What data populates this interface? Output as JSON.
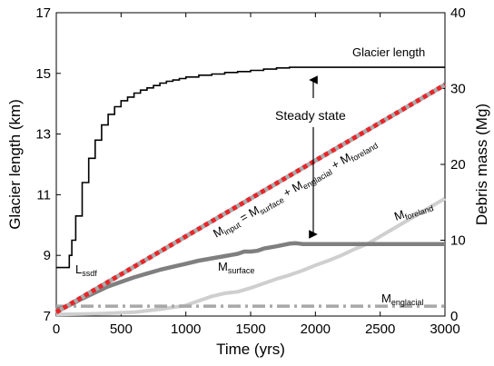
{
  "chart_data": {
    "type": "line",
    "x_label": "Time (yrs)",
    "y_left_label": "Glacier length (km)",
    "y_right_label": "Debris mass (Mg)",
    "x_range": [
      0,
      3000
    ],
    "y_left_range": [
      7,
      17
    ],
    "y_right_range": [
      0,
      40
    ],
    "x_ticks": [
      "0",
      "500",
      "1000",
      "1500",
      "2000",
      "2500",
      "3000"
    ],
    "y_left_ticks": [
      "7",
      "9",
      "11",
      "13",
      "15",
      "17"
    ],
    "y_right_ticks": [
      "0",
      "10",
      "20",
      "30",
      "40"
    ],
    "grid": false,
    "colors": {
      "glacier_length": "#000000",
      "m_input_line": "#aaaaaa",
      "m_input_dash": "#e8262a",
      "m_surface": "#7f7f7f",
      "m_foreland": "#cfcfcf",
      "m_englacial": "#a8a8a8"
    },
    "series": [
      {
        "name": "Glacier length",
        "axis": "left",
        "step": true,
        "x": [
          0,
          80,
          100,
          120,
          150,
          200,
          250,
          300,
          350,
          400,
          450,
          500,
          550,
          600,
          650,
          700,
          750,
          800,
          850,
          900,
          950,
          1000,
          1100,
          1200,
          1300,
          1400,
          1500,
          1600,
          1700,
          1800,
          2000,
          2500,
          3000
        ],
        "y": [
          8.6,
          8.6,
          9.0,
          9.5,
          10.3,
          11.4,
          12.2,
          12.8,
          13.3,
          13.65,
          13.9,
          14.1,
          14.22,
          14.35,
          14.45,
          14.52,
          14.6,
          14.68,
          14.74,
          14.78,
          14.83,
          14.88,
          14.94,
          14.98,
          15.03,
          15.06,
          15.1,
          15.14,
          15.18,
          15.2,
          15.2,
          15.2,
          15.2
        ]
      },
      {
        "name": "M_input",
        "axis": "right",
        "x": [
          0,
          3000
        ],
        "y": [
          0.5,
          30.5
        ]
      },
      {
        "name": "M_surface",
        "axis": "right",
        "x": [
          0,
          100,
          200,
          300,
          400,
          500,
          600,
          700,
          800,
          900,
          1000,
          1100,
          1200,
          1300,
          1400,
          1450,
          1500,
          1550,
          1600,
          1700,
          1800,
          1850,
          1900,
          2000,
          2200,
          2400,
          2600,
          2800,
          3000
        ],
        "y": [
          0.8,
          1.4,
          2.3,
          3.1,
          3.9,
          4.5,
          5.1,
          5.6,
          6.1,
          6.5,
          6.9,
          7.3,
          7.6,
          7.9,
          8.2,
          8.5,
          8.5,
          8.6,
          8.9,
          9.2,
          9.55,
          9.6,
          9.5,
          9.5,
          9.5,
          9.5,
          9.5,
          9.5,
          9.5
        ]
      },
      {
        "name": "M_foreland",
        "axis": "right",
        "x": [
          0,
          300,
          600,
          800,
          1000,
          1100,
          1200,
          1300,
          1400,
          1500,
          1600,
          1700,
          1800,
          1900,
          2000,
          2100,
          2200,
          2300,
          2400,
          2500,
          2600,
          2700,
          2800,
          2900,
          3000
        ],
        "y": [
          0.2,
          0.3,
          0.5,
          0.9,
          1.4,
          2.0,
          2.6,
          3.0,
          3.2,
          3.7,
          4.3,
          4.9,
          5.4,
          6.0,
          6.7,
          7.3,
          8.0,
          8.8,
          9.5,
          10.5,
          11.5,
          12.5,
          13.5,
          14.5,
          15.5
        ]
      },
      {
        "name": "M_englacial",
        "axis": "right",
        "x": [
          0,
          3000
        ],
        "y": [
          1.3,
          1.3
        ]
      }
    ],
    "annotations": {
      "glacier_length": "Glacier length",
      "steady_state": "Steady state",
      "l_ssdf_main": "L",
      "l_ssdf_sub": "ssdf",
      "m_surface_main": "M",
      "m_surface_sub": "surface",
      "m_foreland_main": "M",
      "m_foreland_sub": "foreland",
      "m_englacial_main": "M",
      "m_englacial_sub": "englacial",
      "eq_m1": "M",
      "eq_s1": "input",
      "eq_t1": " = M",
      "eq_s2": "surface",
      "eq_t2": " + M",
      "eq_s3": "englacial",
      "eq_t3": " + M",
      "eq_s4": "foreland"
    }
  }
}
